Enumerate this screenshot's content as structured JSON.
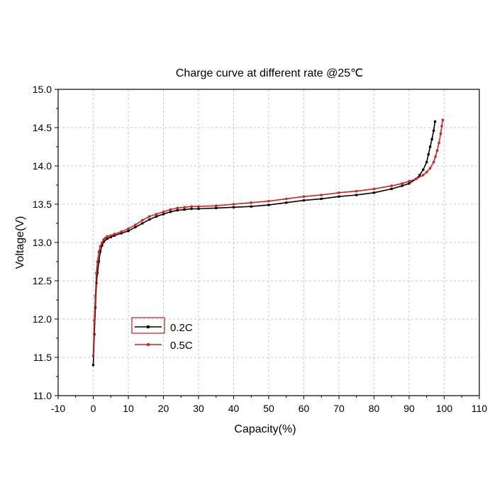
{
  "chart_data": {
    "type": "line",
    "title": "Charge curve at different rate @25℃",
    "xlabel": "Capacity(%)",
    "ylabel": "Voltage(V)",
    "xlim": [
      -10,
      110
    ],
    "ylim": [
      11.0,
      15.0
    ],
    "x_ticks": [
      "-10",
      "0",
      "10",
      "20",
      "30",
      "40",
      "50",
      "60",
      "70",
      "80",
      "90",
      "100",
      "110"
    ],
    "y_ticks": [
      "11.0",
      "11.5",
      "12.0",
      "12.5",
      "13.0",
      "13.5",
      "14.0",
      "14.5",
      "15.0"
    ],
    "grid": true,
    "legend_position": "lower-left",
    "series": [
      {
        "name": "0.2C",
        "color": "#000000",
        "marker": "square",
        "x": [
          0,
          0.3,
          0.6,
          0.9,
          1.2,
          1.6,
          2.0,
          2.5,
          3.0,
          4,
          5,
          6,
          8,
          10,
          12,
          14,
          16,
          18,
          20,
          22,
          24,
          26,
          28,
          30,
          35,
          40,
          45,
          50,
          55,
          60,
          65,
          70,
          75,
          80,
          85,
          88,
          90,
          92,
          93,
          94,
          95,
          95.5,
          96,
          96.5,
          97,
          97.4
        ],
        "y": [
          11.4,
          11.8,
          12.15,
          12.47,
          12.6,
          12.75,
          12.88,
          12.96,
          13.01,
          13.05,
          13.07,
          13.09,
          13.12,
          13.15,
          13.2,
          13.25,
          13.3,
          13.34,
          13.37,
          13.4,
          13.42,
          13.43,
          13.44,
          13.44,
          13.45,
          13.46,
          13.47,
          13.49,
          13.52,
          13.55,
          13.57,
          13.6,
          13.62,
          13.65,
          13.7,
          13.74,
          13.77,
          13.83,
          13.88,
          13.95,
          14.05,
          14.15,
          14.25,
          14.35,
          14.46,
          14.58
        ]
      },
      {
        "name": "0.5C",
        "color": "#d42020",
        "marker": "dot",
        "x": [
          0,
          0.3,
          0.6,
          0.9,
          1.2,
          1.6,
          2.0,
          2.5,
          3.0,
          3.5,
          4,
          5,
          6,
          8,
          10,
          12,
          14,
          16,
          18,
          20,
          22,
          24,
          26,
          28,
          30,
          35,
          40,
          45,
          50,
          55,
          60,
          65,
          70,
          75,
          80,
          85,
          88,
          90,
          92,
          94,
          95,
          96,
          97,
          97.5,
          98,
          98.5,
          99,
          99.3,
          99.6
        ],
        "y": [
          11.52,
          11.98,
          12.3,
          12.6,
          12.75,
          12.88,
          12.95,
          13.0,
          13.04,
          13.06,
          13.08,
          13.09,
          13.11,
          13.14,
          13.18,
          13.23,
          13.29,
          13.34,
          13.37,
          13.4,
          13.43,
          13.45,
          13.46,
          13.47,
          13.47,
          13.48,
          13.5,
          13.52,
          13.54,
          13.57,
          13.6,
          13.62,
          13.65,
          13.67,
          13.7,
          13.74,
          13.77,
          13.8,
          13.83,
          13.88,
          13.92,
          13.97,
          14.05,
          14.12,
          14.2,
          14.3,
          14.42,
          14.52,
          14.6
        ]
      }
    ]
  }
}
